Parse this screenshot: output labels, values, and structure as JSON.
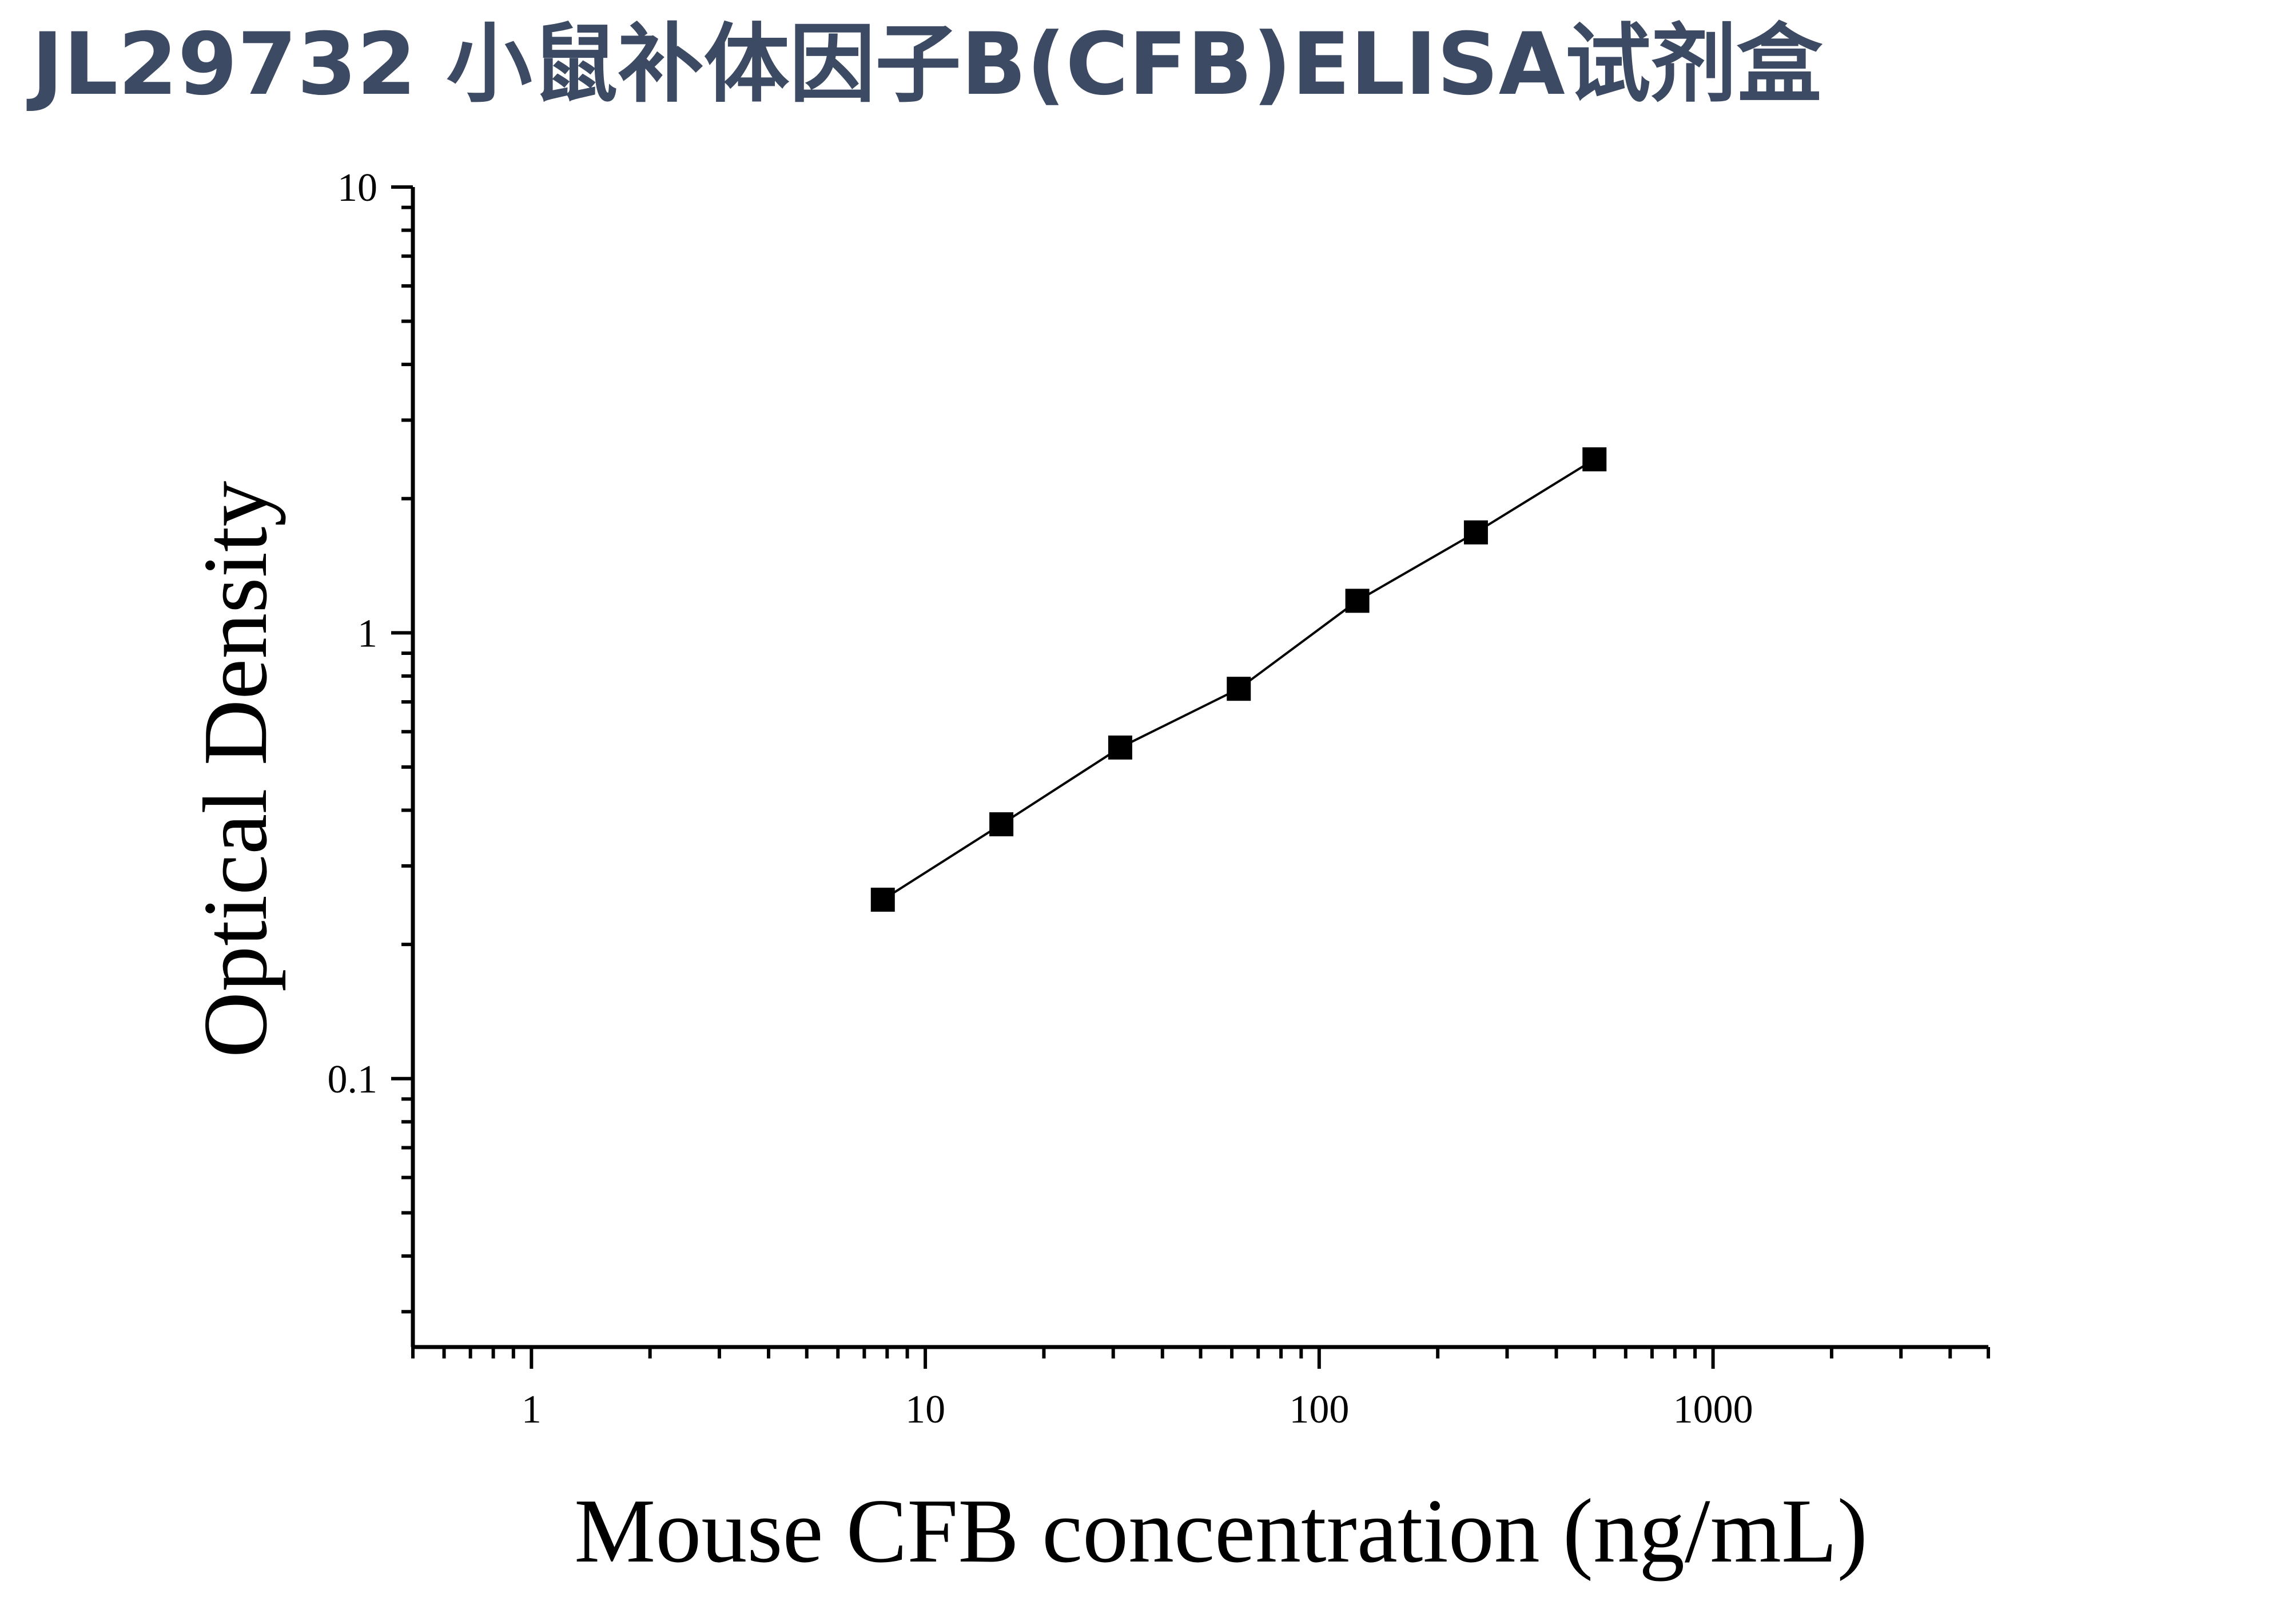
{
  "header": {
    "title": "JL29732 小鼠补体因子B(CFB)ELISA试剂盒",
    "title_color": "#3d4a63"
  },
  "chart_data": {
    "type": "scatter",
    "title": "JL29732 小鼠补体因子B(CFB)ELISA试剂盒",
    "xlabel": "Mouse CFB concentration (ng/mL)",
    "ylabel": "Optical Density",
    "xscale": "log",
    "yscale": "log",
    "xlim": [
      0.5,
      5000
    ],
    "ylim": [
      0.025,
      10
    ],
    "x_ticks": [
      1,
      10,
      100,
      1000
    ],
    "x_tick_labels": [
      "1",
      "10",
      "100",
      "1000"
    ],
    "y_ticks": [
      0.1,
      1,
      10
    ],
    "y_tick_labels": [
      "0.1",
      "1",
      "10"
    ],
    "grid": false,
    "legend": "none",
    "marker": "square",
    "color": "#000000",
    "series": [
      {
        "x": [
          7.8,
          15.6,
          31.25,
          62.5,
          125,
          250,
          500
        ],
        "y": [
          0.252,
          0.372,
          0.553,
          0.749,
          1.18,
          1.68,
          2.45
        ]
      }
    ],
    "fit_line": true
  }
}
